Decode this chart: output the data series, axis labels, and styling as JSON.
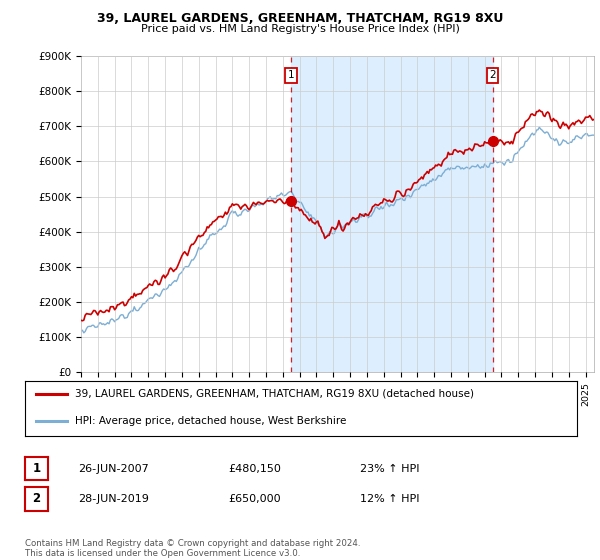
{
  "title": "39, LAUREL GARDENS, GREENHAM, THATCHAM, RG19 8XU",
  "subtitle": "Price paid vs. HM Land Registry's House Price Index (HPI)",
  "ylabel_ticks": [
    "£0",
    "£100K",
    "£200K",
    "£300K",
    "£400K",
    "£500K",
    "£600K",
    "£700K",
    "£800K",
    "£900K"
  ],
  "ylim": [
    0,
    900000
  ],
  "xlim_start": 1995.0,
  "xlim_end": 2025.5,
  "red_line_color": "#cc0000",
  "blue_line_color": "#7daed4",
  "shade_color": "#ddeeff",
  "vline_color": "#cc0000",
  "sale1_x": 2007.48,
  "sale1_label": "1",
  "sale1_price": 480150,
  "sale2_x": 2019.48,
  "sale2_label": "2",
  "sale2_price": 650000,
  "legend_line1": "39, LAUREL GARDENS, GREENHAM, THATCHAM, RG19 8XU (detached house)",
  "legend_line2": "HPI: Average price, detached house, West Berkshire",
  "table_row1": [
    "1",
    "26-JUN-2007",
    "£480,150",
    "23% ↑ HPI"
  ],
  "table_row2": [
    "2",
    "28-JUN-2019",
    "£650,000",
    "12% ↑ HPI"
  ],
  "footnote": "Contains HM Land Registry data © Crown copyright and database right 2024.\nThis data is licensed under the Open Government Licence v3.0.",
  "background_color": "#ffffff",
  "grid_color": "#cccccc"
}
